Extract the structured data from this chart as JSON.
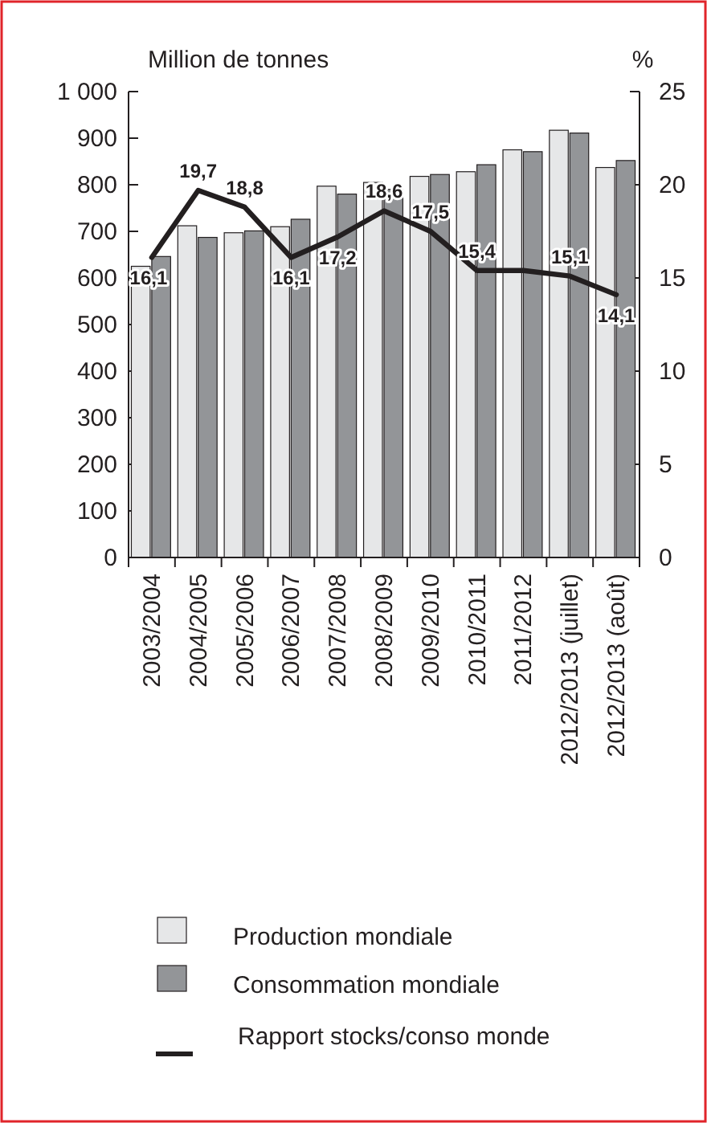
{
  "chart_data": {
    "type": "bar",
    "ylabel": "Million de tonnes",
    "y2label": "%",
    "categories": [
      "2003/2004",
      "2004/2005",
      "2005/2006",
      "2006/2007",
      "2007/2008",
      "2008/2009",
      "2009/2010",
      "2010/2011",
      "2011/2012",
      "2012/2013 (juillet)",
      "2012/2013 (août)"
    ],
    "series": [
      {
        "name": "Production mondiale",
        "color": "#e6e7e8",
        "values": [
          625,
          712,
          697,
          710,
          797,
          805,
          818,
          828,
          875,
          917,
          837
        ]
      },
      {
        "name": "Consommation mondiale",
        "color": "#939598",
        "values": [
          646,
          687,
          701,
          726,
          780,
          790,
          822,
          843,
          871,
          911,
          852
        ]
      },
      {
        "name": "Rapport stocks/conso monde",
        "type": "line",
        "axis": "y2",
        "color": "#231f20",
        "values": [
          16.1,
          19.7,
          18.8,
          16.1,
          17.2,
          18.6,
          17.5,
          15.4,
          15.4,
          15.1,
          14.1
        ],
        "value_labels": [
          "16,1",
          "19,7",
          "18,8",
          "16,1",
          "17,2",
          "18,6",
          "17,5",
          "15,4",
          null,
          "15,1",
          "14,1"
        ]
      }
    ],
    "ylim": [
      0,
      1000
    ],
    "yticks": [
      0,
      {
        "value": 100,
        "label": "100"
      },
      {
        "value": 200,
        "label": "200"
      },
      {
        "value": 300,
        "label": "300"
      },
      {
        "value": 400,
        "label": "400"
      },
      {
        "value": 500,
        "label": "500"
      },
      {
        "value": 600,
        "label": "600"
      },
      {
        "value": 700,
        "label": "700"
      },
      {
        "value": 800,
        "label": "800"
      },
      {
        "value": 900,
        "label": "900"
      },
      {
        "value": 1000,
        "label": "1 000"
      }
    ],
    "y2lim": [
      0,
      25
    ],
    "y2ticks": [
      0,
      5,
      10,
      15,
      20,
      25
    ],
    "legend": "bottom",
    "grid": false
  }
}
